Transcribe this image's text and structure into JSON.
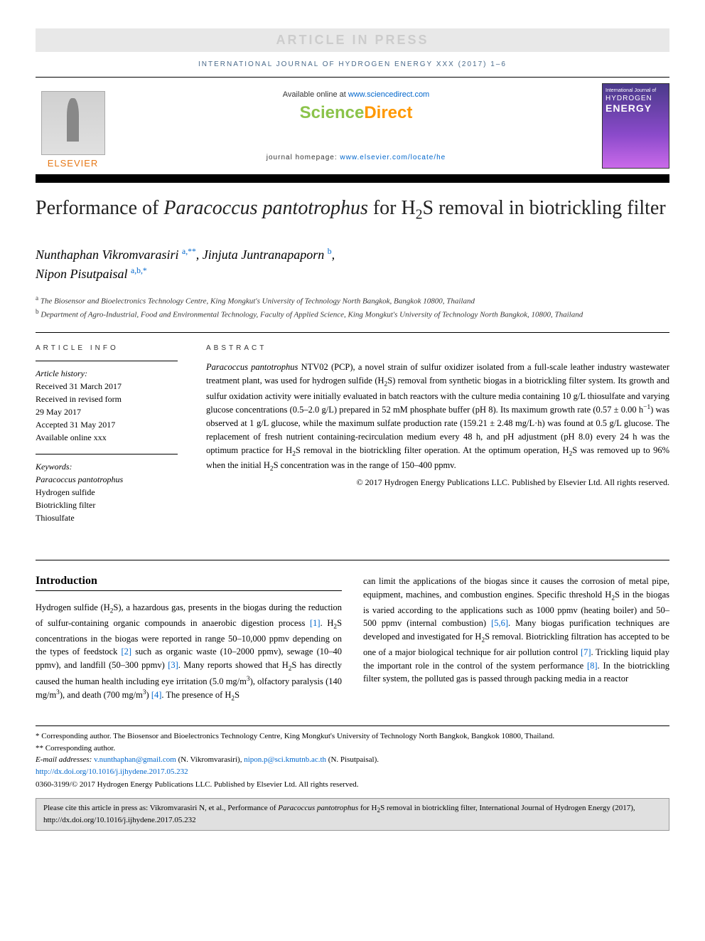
{
  "banner": "ARTICLE IN PRESS",
  "journal_ref": "INTERNATIONAL JOURNAL OF HYDROGEN ENERGY XXX (2017) 1–6",
  "header": {
    "elsevier": "ELSEVIER",
    "available_prefix": "Available online at ",
    "available_link": "www.sciencedirect.com",
    "sd_science": "Science",
    "sd_direct": "Direct",
    "homepage_prefix": "journal homepage: ",
    "homepage_link": "www.elsevier.com/locate/he",
    "cover_top": "International Journal of",
    "cover_hydrogen": "HYDROGEN",
    "cover_energy": "ENERGY"
  },
  "title_parts": {
    "p1": "Performance of ",
    "italic": "Paracoccus pantotrophus",
    "p2": " for H",
    "sub": "2",
    "p3": "S removal in biotrickling filter"
  },
  "authors_html": "Nunthaphan Vikromvarasiri <sup>a,**</sup>, Jinjuta Juntranapaporn <sup>b</sup>, Nipon Pisutpaisal <sup>a,b,*</sup>",
  "affiliations": {
    "a": "a The Biosensor and Bioelectronics Technology Centre, King Mongkut's University of Technology North Bangkok, Bangkok 10800, Thailand",
    "b": "b Department of Agro-Industrial, Food and Environmental Technology, Faculty of Applied Science, King Mongkut's University of Technology North Bangkok, 10800, Thailand"
  },
  "info": {
    "label": "ARTICLE INFO",
    "history_label": "Article history:",
    "received": "Received 31 March 2017",
    "revised1": "Received in revised form",
    "revised2": "29 May 2017",
    "accepted": "Accepted 31 May 2017",
    "online": "Available online xxx",
    "keywords_label": "Keywords:",
    "kw1": "Paracoccus pantotrophus",
    "kw2": "Hydrogen sulfide",
    "kw3": "Biotrickling filter",
    "kw4": "Thiosulfate"
  },
  "abstract": {
    "label": "ABSTRACT",
    "text": "Paracoccus pantotrophus NTV02 (PCP), a novel strain of sulfur oxidizer isolated from a full-scale leather industry wastewater treatment plant, was used for hydrogen sulfide (H2S) removal from synthetic biogas in a biotrickling filter system. Its growth and sulfur oxidation activity were initially evaluated in batch reactors with the culture media containing 10 g/L thiosulfate and varying glucose concentrations (0.5–2.0 g/L) prepared in 52 mM phosphate buffer (pH 8). Its maximum growth rate (0.57 ± 0.00 h−1) was observed at 1 g/L glucose, while the maximum sulfate production rate (159.21 ± 2.48 mg/L·h) was found at 0.5 g/L glucose. The replacement of fresh nutrient containing-recirculation medium every 48 h, and pH adjustment (pH 8.0) every 24 h was the optimum practice for H2S removal in the biotrickling filter operation. At the optimum operation, H2S was removed up to 96% when the initial H2S concentration was in the range of 150–400 ppmv.",
    "copyright": "© 2017 Hydrogen Energy Publications LLC. Published by Elsevier Ltd. All rights reserved."
  },
  "intro": {
    "heading": "Introduction",
    "col1": "Hydrogen sulfide (H2S), a hazardous gas, presents in the biogas during the reduction of sulfur-containing organic compounds in anaerobic digestion process [1]. H2S concentrations in the biogas were reported in range 50–10,000 ppmv depending on the types of feedstock [2] such as organic waste (10–2000 ppmv), sewage (10–40 ppmv), and landfill (50–300 ppmv) [3]. Many reports showed that H2S has directly caused the human health including eye irritation (5.0 mg/m3), olfactory paralysis (140 mg/m3), and death (700 mg/m3) [4]. The presence of H2S",
    "col2": "can limit the applications of the biogas since it causes the corrosion of metal pipe, equipment, machines, and combustion engines. Specific threshold H2S in the biogas is varied according to the applications such as 1000 ppmv (heating boiler) and 50–500 ppmv (internal combustion) [5,6]. Many biogas purification techniques are developed and investigated for H2S removal. Biotrickling filtration has accepted to be one of a major biological technique for air pollution control [7]. Trickling liquid play the important role in the control of the system performance [8]. In the biotrickling filter system, the polluted gas is passed through packing media in a reactor"
  },
  "footnotes": {
    "corr1": "* Corresponding author. The Biosensor and Bioelectronics Technology Centre, King Mongkut's University of Technology North Bangkok, Bangkok 10800, Thailand.",
    "corr2": "** Corresponding author.",
    "email_label": "E-mail addresses: ",
    "email1": "v.nunthaphan@gmail.com",
    "email1_who": " (N. Vikromvarasiri), ",
    "email2": "nipon.p@sci.kmutnb.ac.th",
    "email2_who": " (N. Pisutpaisal).",
    "doi": "http://dx.doi.org/10.1016/j.ijhydene.2017.05.232",
    "issn": "0360-3199/© 2017 Hydrogen Energy Publications LLC. Published by Elsevier Ltd. All rights reserved."
  },
  "citebox": "Please cite this article in press as: Vikromvarasiri N, et al., Performance of Paracoccus pantotrophus for H2S removal in biotrickling filter, International Journal of Hydrogen Energy (2017), http://dx.doi.org/10.1016/j.ijhydene.2017.05.232",
  "colors": {
    "link": "#0066cc",
    "elsevier_orange": "#e67817",
    "sd_green": "#8bc34a",
    "sd_orange": "#ff9800",
    "banner_bg": "#e8e8e8",
    "citebox_bg": "#e0e0e0"
  }
}
